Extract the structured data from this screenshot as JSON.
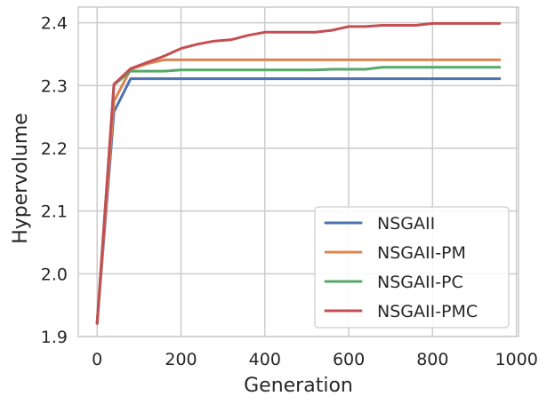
{
  "chart_data": {
    "type": "line",
    "title": "",
    "xlabel": "Generation",
    "ylabel": "Hypervolume",
    "xlim": [
      -45,
      1005
    ],
    "ylim": [
      1.9,
      2.425
    ],
    "xticks": [
      0,
      200,
      400,
      600,
      800,
      1000
    ],
    "xtick_labels": [
      "0",
      "200",
      "400",
      "600",
      "800",
      "1000"
    ],
    "yticks": [
      1.9,
      2.0,
      2.1,
      2.2,
      2.3,
      2.4
    ],
    "ytick_labels": [
      "1.9",
      "2.0",
      "2.1",
      "2.2",
      "2.3",
      "2.4"
    ],
    "grid": true,
    "legend_position": "lower-right",
    "series": [
      {
        "name": "NSGAII",
        "color": "#4c72b0",
        "x": [
          0,
          40,
          80,
          120,
          160,
          200,
          240,
          280,
          320,
          360,
          400,
          440,
          480,
          520,
          560,
          600,
          640,
          680,
          720,
          760,
          800,
          840,
          880,
          920,
          960
        ],
        "y": [
          1.921,
          2.258,
          2.311,
          2.311,
          2.311,
          2.311,
          2.311,
          2.311,
          2.311,
          2.311,
          2.311,
          2.311,
          2.311,
          2.311,
          2.311,
          2.311,
          2.311,
          2.311,
          2.311,
          2.311,
          2.311,
          2.311,
          2.311,
          2.311,
          2.311
        ]
      },
      {
        "name": "NSGAII-PM",
        "color": "#dd8452",
        "x": [
          0,
          40,
          80,
          120,
          160,
          200,
          240,
          280,
          320,
          360,
          400,
          440,
          480,
          520,
          560,
          600,
          640,
          680,
          720,
          760,
          800,
          840,
          880,
          920,
          960
        ],
        "y": [
          1.921,
          2.275,
          2.326,
          2.335,
          2.341,
          2.341,
          2.341,
          2.341,
          2.341,
          2.341,
          2.341,
          2.341,
          2.341,
          2.341,
          2.341,
          2.341,
          2.341,
          2.341,
          2.341,
          2.341,
          2.341,
          2.341,
          2.341,
          2.341,
          2.341
        ]
      },
      {
        "name": "NSGAII-PC",
        "color": "#55a868",
        "x": [
          0,
          40,
          80,
          120,
          160,
          200,
          240,
          280,
          320,
          360,
          400,
          440,
          480,
          520,
          560,
          600,
          640,
          680,
          720,
          760,
          800,
          840,
          880,
          920,
          960
        ],
        "y": [
          1.921,
          2.301,
          2.323,
          2.323,
          2.323,
          2.325,
          2.325,
          2.325,
          2.325,
          2.325,
          2.325,
          2.325,
          2.325,
          2.325,
          2.326,
          2.326,
          2.326,
          2.329,
          2.329,
          2.329,
          2.329,
          2.329,
          2.329,
          2.329,
          2.329
        ]
      },
      {
        "name": "NSGAII-PMC",
        "color": "#c44e52",
        "x": [
          0,
          40,
          80,
          120,
          160,
          200,
          240,
          280,
          320,
          360,
          400,
          440,
          480,
          520,
          560,
          600,
          640,
          680,
          720,
          760,
          800,
          840,
          880,
          920,
          960
        ],
        "y": [
          1.921,
          2.302,
          2.327,
          2.337,
          2.347,
          2.359,
          2.366,
          2.371,
          2.373,
          2.38,
          2.385,
          2.385,
          2.385,
          2.385,
          2.388,
          2.394,
          2.394,
          2.396,
          2.396,
          2.396,
          2.399,
          2.399,
          2.399,
          2.399,
          2.399
        ]
      }
    ]
  }
}
